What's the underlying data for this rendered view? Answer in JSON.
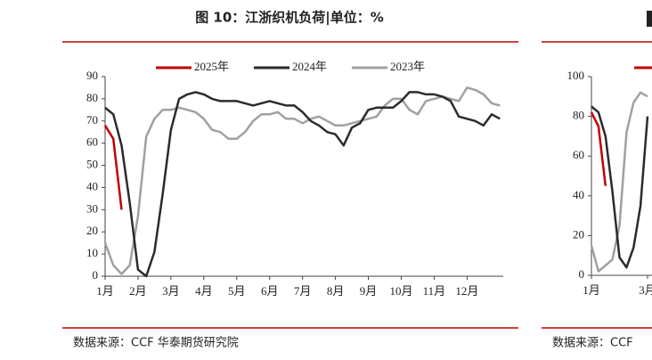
{
  "chart_data": [
    {
      "type": "line",
      "title": "图 10：江浙织机负荷|单位：%",
      "source": "数据来源：CCF  华泰期货研究院",
      "xlim": [
        1,
        13.1
      ],
      "ylim": [
        0,
        90
      ],
      "yticks": [
        0,
        10,
        20,
        30,
        40,
        50,
        60,
        70,
        80,
        90
      ],
      "xticks": [
        {
          "value": 1,
          "label": "1月"
        },
        {
          "value": 2,
          "label": "2月"
        },
        {
          "value": 3,
          "label": "3月"
        },
        {
          "value": 4,
          "label": "4月"
        },
        {
          "value": 5,
          "label": "5月"
        },
        {
          "value": 6,
          "label": "6月"
        },
        {
          "value": 7,
          "label": "7月"
        },
        {
          "value": 8,
          "label": "8月"
        },
        {
          "value": 9,
          "label": "9月"
        },
        {
          "value": 10,
          "label": "10月"
        },
        {
          "value": 11,
          "label": "11月"
        },
        {
          "value": 12,
          "label": "12月"
        }
      ],
      "x": [
        1,
        1.25,
        1.5,
        1.75,
        2,
        2.25,
        2.5,
        2.75,
        3,
        3.25,
        3.5,
        3.75,
        4,
        4.25,
        4.5,
        4.75,
        5,
        5.25,
        5.5,
        5.75,
        6,
        6.25,
        6.5,
        6.75,
        7,
        7.25,
        7.5,
        7.75,
        8,
        8.25,
        8.5,
        8.75,
        9,
        9.25,
        9.5,
        9.75,
        10,
        10.25,
        10.5,
        10.75,
        11,
        11.25,
        11.5,
        11.75,
        12,
        12.25,
        12.5,
        12.75,
        13
      ],
      "series": [
        {
          "name": "2025年",
          "color": "#c00000",
          "values": [
            68,
            62,
            30,
            null,
            null,
            null,
            null,
            null,
            null,
            null,
            null,
            null,
            null,
            null,
            null,
            null,
            null,
            null,
            null,
            null,
            null,
            null,
            null,
            null,
            null,
            null,
            null,
            null,
            null,
            null,
            null,
            null,
            null,
            null,
            null,
            null,
            null,
            null,
            null,
            null,
            null,
            null,
            null,
            null,
            null,
            null,
            null,
            null,
            null
          ]
        },
        {
          "name": "2024年",
          "color": "#2b2b2b",
          "values": [
            76,
            73,
            59,
            33,
            3,
            0,
            11,
            37,
            66,
            80,
            82,
            83,
            82,
            80,
            79,
            79,
            79,
            78,
            77,
            78,
            79,
            78,
            77,
            77,
            74,
            70,
            68,
            65,
            64,
            59,
            67,
            69,
            75,
            76,
            76,
            76,
            79,
            83,
            83,
            82,
            82,
            81,
            79,
            72,
            71,
            70,
            68,
            73,
            71
          ]
        },
        {
          "name": "2023年",
          "color": "#a0a0a0",
          "values": [
            15,
            5,
            1,
            5,
            27,
            63,
            71,
            75,
            75,
            76,
            75,
            74,
            71,
            66,
            65,
            62,
            62,
            65,
            70,
            73,
            73,
            74,
            71,
            71,
            69,
            71,
            72,
            70,
            68,
            68,
            69,
            70,
            71,
            72,
            77,
            80,
            80,
            75,
            73,
            79,
            80,
            81,
            80,
            79,
            85,
            84,
            82,
            78,
            77
          ]
        }
      ]
    },
    {
      "type": "line",
      "source": "数据来源：CCF",
      "xlim": [
        1,
        13
      ],
      "ylim": [
        0,
        100
      ],
      "yticks": [
        0,
        20,
        40,
        60,
        80,
        100
      ],
      "xticks": [
        {
          "value": 1,
          "label": "1月"
        },
        {
          "value": 3,
          "label": "3月"
        }
      ],
      "x": [
        1,
        1.25,
        1.5,
        1.75,
        2,
        2.25,
        2.5,
        2.75,
        3
      ],
      "series": [
        {
          "color": "#c00000",
          "values": [
            82,
            75,
            45,
            null,
            null,
            null,
            null,
            null,
            null
          ]
        },
        {
          "color": "#2b2b2b",
          "values": [
            85,
            82,
            70,
            42,
            9,
            4,
            14,
            35,
            80
          ]
        },
        {
          "color": "#a0a0a0",
          "values": [
            15,
            2,
            5,
            8,
            25,
            72,
            87,
            92,
            90
          ]
        }
      ]
    }
  ]
}
